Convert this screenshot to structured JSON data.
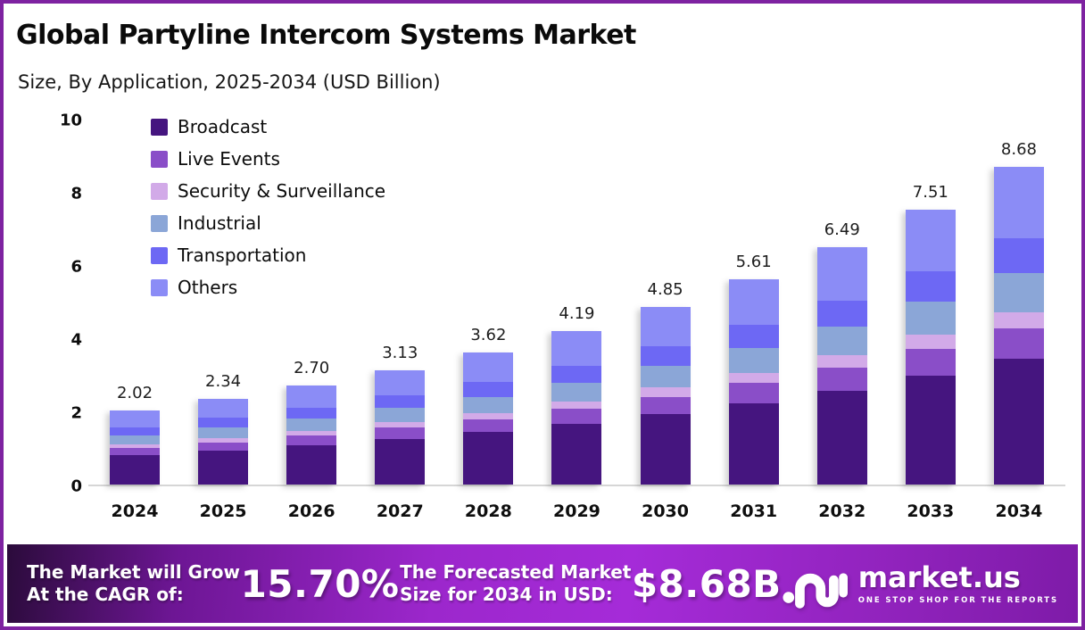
{
  "header": {
    "title": "Global Partyline Intercom Systems Market",
    "subtitle": "Size, By Application, 2025-2034 (USD Billion)"
  },
  "chart_data": {
    "type": "bar",
    "stacked": true,
    "title": "Global Partyline Intercom Systems Market",
    "subtitle": "Size, By Application, 2025-2034 (USD Billion)",
    "unit": "USD Billion",
    "categories": [
      "2024",
      "2025",
      "2026",
      "2027",
      "2028",
      "2029",
      "2030",
      "2031",
      "2032",
      "2033",
      "2034"
    ],
    "totals": [
      2.02,
      2.34,
      2.7,
      3.13,
      3.62,
      4.19,
      4.85,
      5.61,
      6.49,
      7.51,
      8.68
    ],
    "total_labels": [
      "2.02",
      "2.34",
      "2.70",
      "3.13",
      "3.62",
      "4.19",
      "4.85",
      "5.61",
      "6.49",
      "7.51",
      "8.68"
    ],
    "series": [
      {
        "name": "Broadcast",
        "color": "#45157f",
        "values": [
          0.8,
          0.92,
          1.07,
          1.24,
          1.43,
          1.66,
          1.92,
          2.22,
          2.56,
          2.97,
          3.43
        ]
      },
      {
        "name": "Live Events",
        "color": "#8a4ec8",
        "values": [
          0.2,
          0.23,
          0.26,
          0.31,
          0.35,
          0.41,
          0.48,
          0.55,
          0.64,
          0.74,
          0.85
        ]
      },
      {
        "name": "Security & Surveillance",
        "color": "#d2aae8",
        "values": [
          0.1,
          0.12,
          0.14,
          0.16,
          0.18,
          0.21,
          0.25,
          0.29,
          0.33,
          0.38,
          0.44
        ]
      },
      {
        "name": "Industrial",
        "color": "#8ba6d7",
        "values": [
          0.25,
          0.29,
          0.33,
          0.38,
          0.44,
          0.51,
          0.59,
          0.68,
          0.79,
          0.92,
          1.06
        ]
      },
      {
        "name": "Transportation",
        "color": "#6d68f4",
        "values": [
          0.22,
          0.26,
          0.3,
          0.34,
          0.4,
          0.46,
          0.53,
          0.62,
          0.71,
          0.83,
          0.95
        ]
      },
      {
        "name": "Others",
        "color": "#8b8cf6",
        "values": [
          0.45,
          0.52,
          0.6,
          0.7,
          0.82,
          0.94,
          1.08,
          1.25,
          1.46,
          1.67,
          1.95
        ]
      }
    ],
    "ylim": [
      0,
      10
    ],
    "yticks": [
      0,
      2,
      4,
      6,
      8,
      10
    ],
    "grid": false,
    "legend_position": "top-left"
  },
  "banner": {
    "cagr_label_line1": "The Market will Grow",
    "cagr_label_line2": "At the CAGR of:",
    "cagr_value": "15.70%",
    "forecast_label_line1": "The Forecasted Market",
    "forecast_label_line2": "Size for 2034 in USD:",
    "forecast_value": "$8.68B",
    "logo_text": "market.us",
    "logo_tagline": "ONE STOP SHOP FOR THE REPORTS"
  },
  "colors": {
    "page_border": "#7e22a1",
    "banner_gradient_start": "#2b0b3b",
    "banner_gradient_mid": "#a52bd8",
    "banner_gradient_end": "#7e1ba8",
    "axis_line": "#d6d6d6",
    "text": "#0a0a0a"
  }
}
